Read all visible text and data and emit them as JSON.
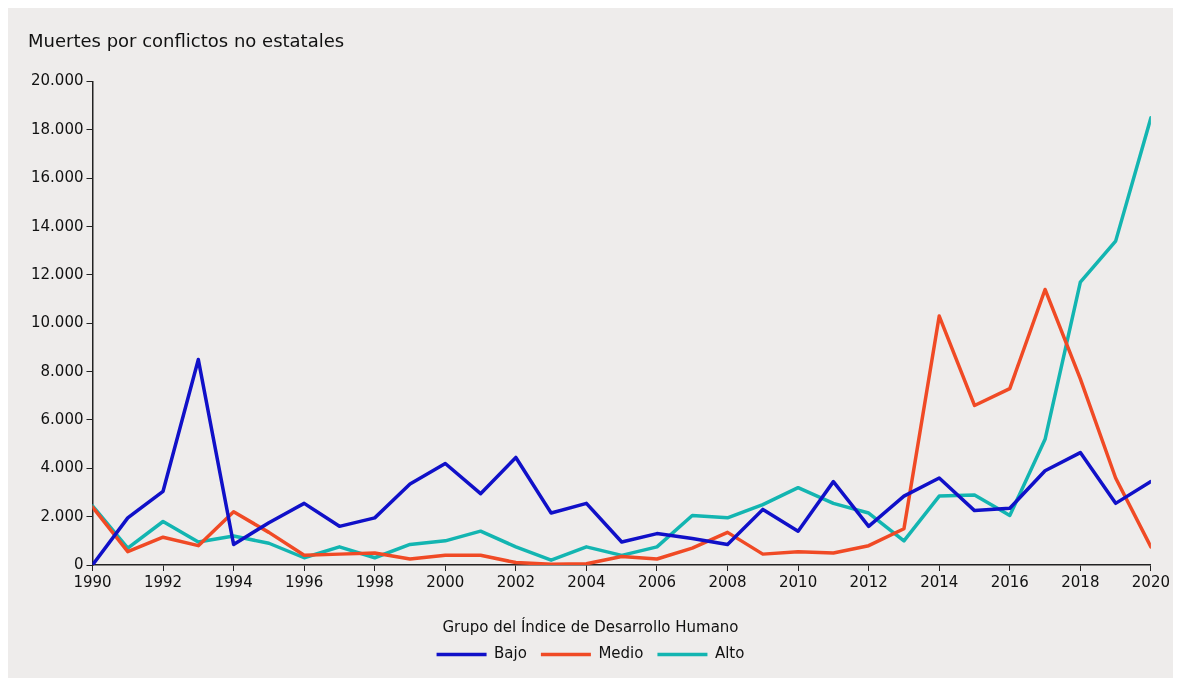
{
  "chart_data": {
    "type": "line",
    "title": "Muertes por conflictos no estatales",
    "legend_title": "Grupo del Índice de Desarrollo Humano",
    "legend": "bottom",
    "grid": false,
    "marker": "none",
    "line_style": "solid",
    "x": [
      1990,
      1991,
      1992,
      1993,
      1994,
      1995,
      1996,
      1997,
      1998,
      1999,
      2000,
      2001,
      2002,
      2003,
      2004,
      2005,
      2006,
      2007,
      2008,
      2009,
      2010,
      2011,
      2012,
      2013,
      2014,
      2015,
      2016,
      2017,
      2018,
      2019,
      2020
    ],
    "xlim": [
      1990,
      2020
    ],
    "xticks": [
      1990,
      1992,
      1994,
      1996,
      1998,
      2000,
      2002,
      2004,
      2006,
      2008,
      2010,
      2012,
      2014,
      2016,
      2018,
      2020
    ],
    "ylim": [
      0,
      20000
    ],
    "yticks": [
      0,
      {
        "value": 2000,
        "label": "2.000"
      },
      {
        "value": 4000,
        "label": "4.000"
      },
      {
        "value": 6000,
        "label": "6.000"
      },
      {
        "value": 8000,
        "label": "8.000"
      },
      {
        "value": 10000,
        "label": "10.000"
      },
      {
        "value": 12000,
        "label": "12.000"
      },
      {
        "value": 14000,
        "label": "14.000"
      },
      {
        "value": 16000,
        "label": "16.000"
      },
      {
        "value": 18000,
        "label": "18.000"
      },
      {
        "value": 20000,
        "label": "20.000"
      }
    ],
    "series": [
      {
        "name": "Bajo",
        "color": "#1010c8",
        "values": [
          0,
          1950,
          3050,
          8500,
          850,
          1750,
          2550,
          1600,
          1950,
          3350,
          4200,
          2950,
          4450,
          2150,
          2550,
          950,
          1300,
          1100,
          850,
          2300,
          1400,
          3450,
          1600,
          2850,
          3600,
          2250,
          2350,
          3900,
          4650,
          2550,
          3450
        ]
      },
      {
        "name": "Medio",
        "color": "#f04a25",
        "values": [
          2400,
          550,
          1150,
          800,
          2200,
          1350,
          400,
          450,
          500,
          250,
          400,
          400,
          100,
          30,
          50,
          350,
          250,
          700,
          1350,
          450,
          550,
          500,
          800,
          1500,
          10300,
          6600,
          7300,
          11400,
          7700,
          3600,
          750
        ]
      },
      {
        "name": "Alto",
        "color": "#13b5b1",
        "values": [
          2450,
          700,
          1800,
          950,
          1200,
          900,
          300,
          750,
          300,
          850,
          1000,
          1400,
          750,
          200,
          750,
          400,
          750,
          2050,
          1950,
          2500,
          3200,
          2550,
          2150,
          1000,
          2850,
          2900,
          2050,
          5200,
          11700,
          13400,
          18500
        ]
      }
    ]
  }
}
